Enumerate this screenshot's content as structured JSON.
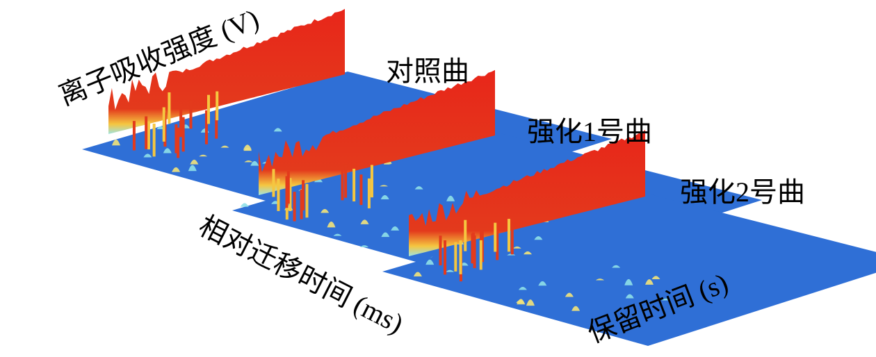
{
  "axes": {
    "intensity": "离子吸收强度 (V)",
    "drift_time": "相对迁移时间 (ms)",
    "retention_time": "保留时间 (s)"
  },
  "samples": [
    {
      "label": "对照曲"
    },
    {
      "label": "强化1号曲"
    },
    {
      "label": "强化2号曲"
    }
  ]
}
